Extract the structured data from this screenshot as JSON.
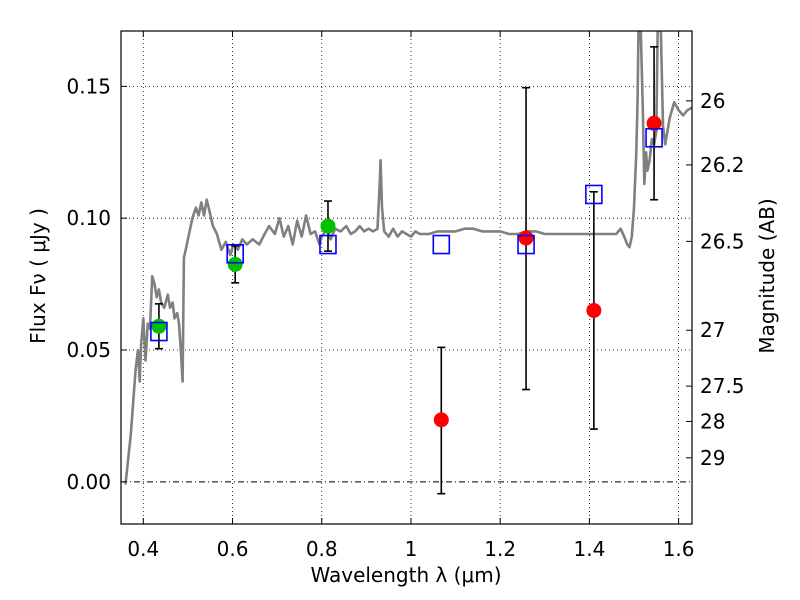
{
  "chart_data": {
    "type": "scatter",
    "xlabel": "Wavelength  λ (μm)",
    "ylabel": "Flux  Fν  ( μJy )",
    "ylabel_right": "Magnitude (AB)",
    "xlim": [
      0.35,
      1.63
    ],
    "ylim": [
      -0.016,
      0.171
    ],
    "x_ticks": [
      0.4,
      0.6,
      0.8,
      1.0,
      1.2,
      1.4,
      1.6
    ],
    "x_tick_labels": [
      "0.4",
      "0.6",
      "0.8",
      "1",
      "1.2",
      "1.4",
      "1.6"
    ],
    "y_ticks": [
      0.0,
      0.05,
      0.1,
      0.15
    ],
    "y_tick_labels": [
      "0.00",
      "0.05",
      "0.10",
      "0.15"
    ],
    "mag_ticks": [
      {
        "label": "26",
        "flux": 0.1445
      },
      {
        "label": "26.2",
        "flux": 0.1202
      },
      {
        "label": "26.5",
        "flux": 0.0912
      },
      {
        "label": "27",
        "flux": 0.0575
      },
      {
        "label": "27.5",
        "flux": 0.0363
      },
      {
        "label": "28",
        "flux": 0.0229
      },
      {
        "label": "29",
        "flux": 0.0091
      }
    ],
    "grid": true,
    "colors": {
      "green": "#00c000",
      "red": "#ff0000",
      "blue": "#0000ff",
      "model": "#808080"
    },
    "series": [
      {
        "marker": "circle",
        "color": "#00c000",
        "points": [
          {
            "x": 0.435,
            "y": 0.059,
            "ylo": 0.0505,
            "yhi": 0.0675
          },
          {
            "x": 0.606,
            "y": 0.0825,
            "ylo": 0.0755,
            "yhi": 0.0895
          },
          {
            "x": 0.814,
            "y": 0.097,
            "ylo": 0.0875,
            "yhi": 0.1065
          }
        ]
      },
      {
        "marker": "circle",
        "color": "#ff0000",
        "points": [
          {
            "x": 1.068,
            "y": 0.0235,
            "ylo": -0.0045,
            "yhi": 0.051
          },
          {
            "x": 1.258,
            "y": 0.0925,
            "ylo": 0.035,
            "yhi": 0.1495
          },
          {
            "x": 1.41,
            "y": 0.065,
            "ylo": 0.02,
            "yhi": 0.11
          },
          {
            "x": 1.545,
            "y": 0.136,
            "ylo": 0.107,
            "yhi": 0.165
          }
        ]
      },
      {
        "marker": "open-square",
        "color": "#0000ff",
        "points": [
          {
            "x": 0.435,
            "y": 0.057
          },
          {
            "x": 0.606,
            "y": 0.0865
          },
          {
            "x": 0.814,
            "y": 0.09
          },
          {
            "x": 1.068,
            "y": 0.09
          },
          {
            "x": 1.258,
            "y": 0.09
          },
          {
            "x": 1.41,
            "y": 0.109
          },
          {
            "x": 1.545,
            "y": 0.1305
          }
        ]
      },
      {
        "marker": "line",
        "color": "#808080",
        "points": [
          [
            0.36,
            -0.001
          ],
          [
            0.372,
            0.018
          ],
          [
            0.383,
            0.043
          ],
          [
            0.388,
            0.05
          ],
          [
            0.392,
            0.038
          ],
          [
            0.395,
            0.052
          ],
          [
            0.4,
            0.062
          ],
          [
            0.405,
            0.046
          ],
          [
            0.41,
            0.06
          ],
          [
            0.415,
            0.058
          ],
          [
            0.42,
            0.078
          ],
          [
            0.425,
            0.075
          ],
          [
            0.43,
            0.07
          ],
          [
            0.435,
            0.073
          ],
          [
            0.44,
            0.068
          ],
          [
            0.447,
            0.066
          ],
          [
            0.455,
            0.071
          ],
          [
            0.46,
            0.066
          ],
          [
            0.466,
            0.068
          ],
          [
            0.47,
            0.062
          ],
          [
            0.476,
            0.064
          ],
          [
            0.48,
            0.06
          ],
          [
            0.484,
            0.05
          ],
          [
            0.488,
            0.038
          ],
          [
            0.491,
            0.085
          ],
          [
            0.495,
            0.088
          ],
          [
            0.5,
            0.092
          ],
          [
            0.51,
            0.1
          ],
          [
            0.518,
            0.104
          ],
          [
            0.524,
            0.101
          ],
          [
            0.53,
            0.106
          ],
          [
            0.536,
            0.101
          ],
          [
            0.542,
            0.107
          ],
          [
            0.548,
            0.103
          ],
          [
            0.556,
            0.097
          ],
          [
            0.565,
            0.094
          ],
          [
            0.575,
            0.088
          ],
          [
            0.585,
            0.091
          ],
          [
            0.595,
            0.086
          ],
          [
            0.602,
            0.09
          ],
          [
            0.612,
            0.088
          ],
          [
            0.622,
            0.092
          ],
          [
            0.632,
            0.09
          ],
          [
            0.645,
            0.092
          ],
          [
            0.66,
            0.09
          ],
          [
            0.672,
            0.094
          ],
          [
            0.682,
            0.097
          ],
          [
            0.695,
            0.094
          ],
          [
            0.705,
            0.1
          ],
          [
            0.715,
            0.093
          ],
          [
            0.725,
            0.097
          ],
          [
            0.735,
            0.09
          ],
          [
            0.745,
            0.099
          ],
          [
            0.755,
            0.093
          ],
          [
            0.765,
            0.101
          ],
          [
            0.775,
            0.094
          ],
          [
            0.785,
            0.095
          ],
          [
            0.795,
            0.09
          ],
          [
            0.8,
            0.093
          ],
          [
            0.812,
            0.096
          ],
          [
            0.82,
            0.092
          ],
          [
            0.83,
            0.096
          ],
          [
            0.842,
            0.095
          ],
          [
            0.855,
            0.097
          ],
          [
            0.865,
            0.094
          ],
          [
            0.875,
            0.095
          ],
          [
            0.885,
            0.097
          ],
          [
            0.895,
            0.095
          ],
          [
            0.905,
            0.096
          ],
          [
            0.915,
            0.095
          ],
          [
            0.925,
            0.096
          ],
          [
            0.93,
            0.113
          ],
          [
            0.932,
            0.122
          ],
          [
            0.935,
            0.104
          ],
          [
            0.94,
            0.095
          ],
          [
            0.95,
            0.093
          ],
          [
            0.96,
            0.096
          ],
          [
            0.97,
            0.093
          ],
          [
            0.98,
            0.095
          ],
          [
            0.99,
            0.094
          ],
          [
            1.0,
            0.093
          ],
          [
            1.01,
            0.095
          ],
          [
            1.02,
            0.094
          ],
          [
            1.04,
            0.094
          ],
          [
            1.06,
            0.095
          ],
          [
            1.08,
            0.095
          ],
          [
            1.1,
            0.095
          ],
          [
            1.12,
            0.096
          ],
          [
            1.14,
            0.096
          ],
          [
            1.16,
            0.095
          ],
          [
            1.18,
            0.095
          ],
          [
            1.2,
            0.095
          ],
          [
            1.22,
            0.094
          ],
          [
            1.24,
            0.094
          ],
          [
            1.26,
            0.095
          ],
          [
            1.28,
            0.095
          ],
          [
            1.3,
            0.094
          ],
          [
            1.32,
            0.094
          ],
          [
            1.34,
            0.094
          ],
          [
            1.36,
            0.094
          ],
          [
            1.38,
            0.094
          ],
          [
            1.4,
            0.094
          ],
          [
            1.42,
            0.094
          ],
          [
            1.44,
            0.094
          ],
          [
            1.46,
            0.094
          ],
          [
            1.47,
            0.096
          ],
          [
            1.478,
            0.093
          ],
          [
            1.485,
            0.09
          ],
          [
            1.49,
            0.089
          ],
          [
            1.495,
            0.093
          ],
          [
            1.5,
            0.104
          ],
          [
            1.505,
            0.124
          ],
          [
            1.508,
            0.145
          ],
          [
            1.51,
            0.172
          ],
          [
            1.515,
            0.172
          ],
          [
            1.52,
            0.14
          ],
          [
            1.523,
            0.113
          ],
          [
            1.527,
            0.125
          ],
          [
            1.53,
            0.118
          ],
          [
            1.535,
            0.122
          ],
          [
            1.54,
            0.13
          ],
          [
            1.545,
            0.128
          ],
          [
            1.55,
            0.133
          ],
          [
            1.553,
            0.172
          ],
          [
            1.56,
            0.172
          ],
          [
            1.565,
            0.135
          ],
          [
            1.57,
            0.128
          ],
          [
            1.58,
            0.138
          ],
          [
            1.59,
            0.144
          ],
          [
            1.6,
            0.141
          ],
          [
            1.61,
            0.139
          ],
          [
            1.62,
            0.141
          ],
          [
            1.63,
            0.142
          ]
        ]
      }
    ]
  }
}
